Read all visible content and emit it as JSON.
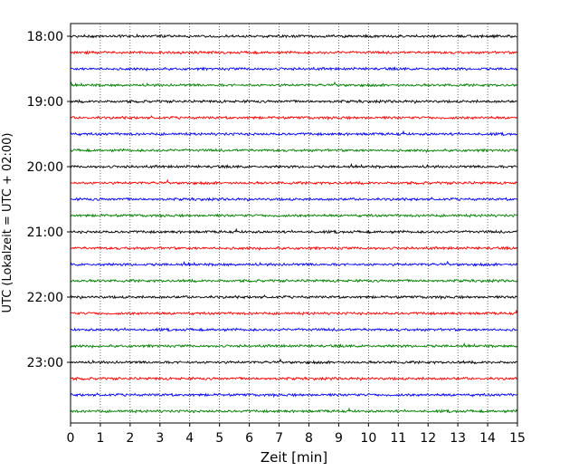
{
  "chart_data": {
    "type": "line",
    "title": "",
    "xlabel": "Zeit  [min]",
    "ylabel": "UTC (Lokalzeit = UTC + 02:00)",
    "xlim": [
      0,
      15
    ],
    "x_ticks": [
      0,
      1,
      2,
      3,
      4,
      5,
      6,
      7,
      8,
      9,
      10,
      11,
      12,
      13,
      14,
      15
    ],
    "y_tick_labels": [
      "18:00",
      "19:00",
      "20:00",
      "21:00",
      "22:00",
      "23:00"
    ],
    "grid": "vertical dotted",
    "trace_minutes": 15,
    "trace_colors_cycle": [
      "#000000",
      "#ff0000",
      "#0000ff",
      "#008000"
    ],
    "series": [
      {
        "start": "18:00",
        "color": "#000000"
      },
      {
        "start": "18:15",
        "color": "#ff0000"
      },
      {
        "start": "18:30",
        "color": "#0000ff"
      },
      {
        "start": "18:45",
        "color": "#008000"
      },
      {
        "start": "19:00",
        "color": "#000000"
      },
      {
        "start": "19:15",
        "color": "#ff0000"
      },
      {
        "start": "19:30",
        "color": "#0000ff"
      },
      {
        "start": "19:45",
        "color": "#008000"
      },
      {
        "start": "20:00",
        "color": "#000000"
      },
      {
        "start": "20:15",
        "color": "#ff0000"
      },
      {
        "start": "20:30",
        "color": "#0000ff"
      },
      {
        "start": "20:45",
        "color": "#008000"
      },
      {
        "start": "21:00",
        "color": "#000000"
      },
      {
        "start": "21:15",
        "color": "#ff0000"
      },
      {
        "start": "21:30",
        "color": "#0000ff"
      },
      {
        "start": "21:45",
        "color": "#008000"
      },
      {
        "start": "22:00",
        "color": "#000000"
      },
      {
        "start": "22:15",
        "color": "#ff0000"
      },
      {
        "start": "22:30",
        "color": "#0000ff"
      },
      {
        "start": "22:45",
        "color": "#008000"
      },
      {
        "start": "23:00",
        "color": "#000000"
      },
      {
        "start": "23:15",
        "color": "#ff0000"
      },
      {
        "start": "23:30",
        "color": "#0000ff"
      },
      {
        "start": "23:45",
        "color": "#008000"
      }
    ]
  }
}
